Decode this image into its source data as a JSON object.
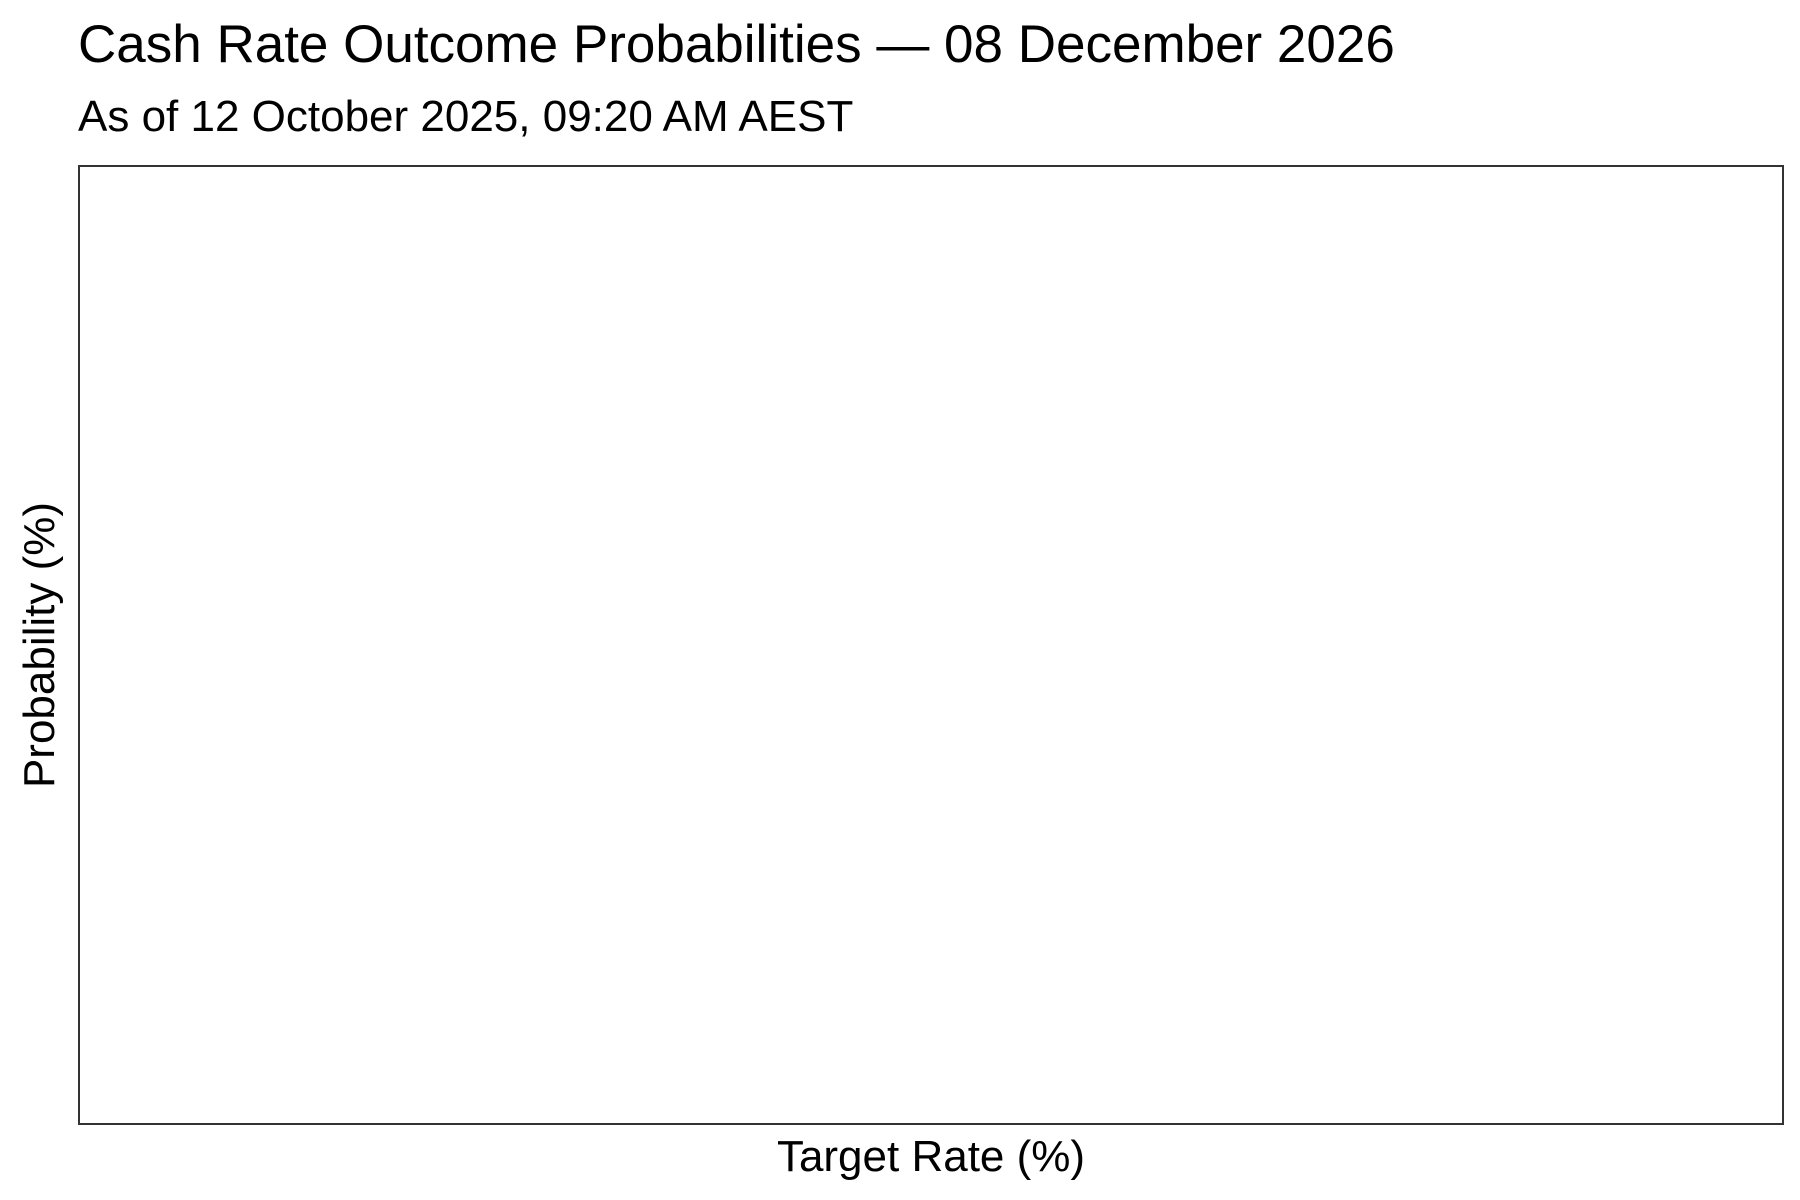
{
  "chart_data": {
    "type": "bar",
    "title": "Cash Rate Outcome Probabilities — 08 December 2026",
    "subtitle": "As of 12 October 2025, 09:20 AM AEST",
    "xlabel": "Target Rate (%)",
    "ylabel": "Probability (%)",
    "categories": [],
    "values": [],
    "grid": false,
    "legend": "none"
  }
}
